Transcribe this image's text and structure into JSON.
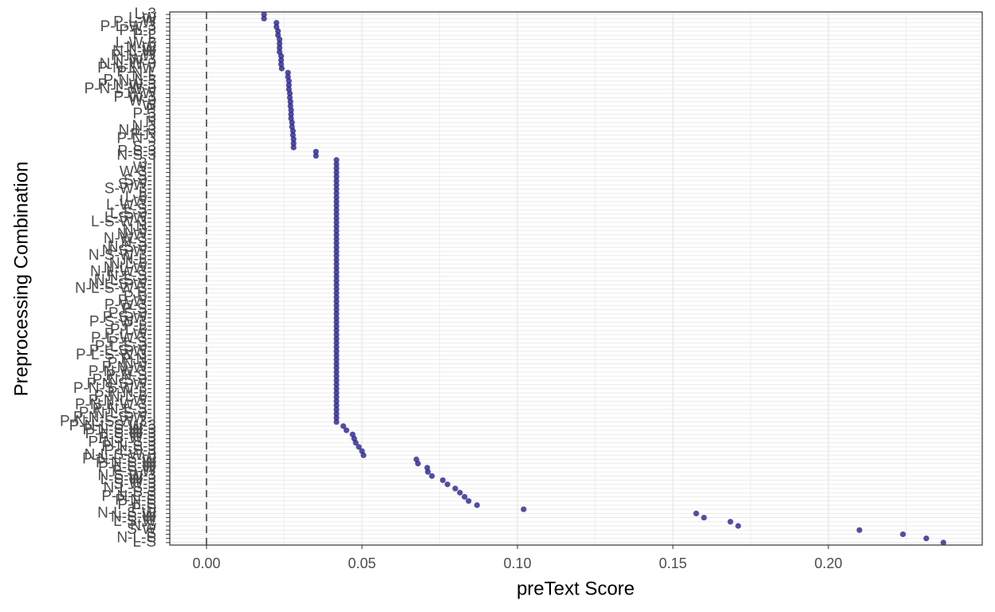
{
  "chart_data": {
    "type": "dot",
    "x_label": "preText Score",
    "y_label": "Preprocessing Combination",
    "color": "#27238c",
    "grid": true,
    "reference_line": 0,
    "xlim": [
      -0.0118,
      0.2495
    ],
    "xticks": [
      {
        "value": 0,
        "label": "0.00"
      },
      {
        "value": 0.05,
        "label": "0.05"
      },
      {
        "value": 0.1,
        "label": "0.10"
      },
      {
        "value": 0.15,
        "label": "0.15"
      },
      {
        "value": 0.2,
        "label": "0.20"
      }
    ],
    "categories": [
      "L-3",
      "L-W",
      "P-L-W",
      "P-L-W-3",
      "P-L-3",
      "P-L",
      "L",
      "L-W-3",
      "N-W",
      "N-L-W",
      "P-N-W",
      "N-W-3",
      "N-L-W-3",
      "P-N-L-W",
      "P-N-L",
      "N-L",
      "P-N-L-3",
      "P-N-W-3",
      "P-N-L-W-3",
      "P-W",
      "P-W-3",
      "W-3",
      "W",
      "P",
      "P-3",
      "3",
      "N",
      "N-3",
      "N-L-3",
      "P-N",
      "P-N-3",
      null,
      "S-3",
      "P-S-3",
      "N-S-3",
      "I",
      "3-I",
      "W-I",
      "W-3-I",
      "S-I",
      "S-3-I",
      "S-W-I",
      "S-W-3-I",
      "L-I",
      "L-3-I",
      "L-W-I",
      "L-W-3-I",
      "L-S-I",
      "L-S-3-I",
      "L-S-W-I",
      "L-S-W-3-I",
      "N-I",
      "N-3-I",
      "N-W-I",
      "N-W-3-I",
      "N-S-I",
      "N-S-3-I",
      "N-S-W-I",
      "N-S-W-3-I",
      "N-L-I",
      "N-L-3-I",
      "N-L-W-I",
      "N-L-W-3-I",
      "N-L-S-I",
      "N-L-S-3-I",
      "N-L-S-W-I",
      "N-L-S-W-3-I",
      "P-I",
      "P-3-I",
      "P-W-I",
      "P-W-3-I",
      "P-S-I",
      "P-S-3-I",
      "P-S-W-I",
      "P-S-W-3-I",
      "P-L-I",
      "P-L-3-I",
      "P-L-W-I",
      "P-L-W-3-I",
      "P-L-S-I",
      "P-L-S-3-I",
      "P-L-S-W-I",
      "P-L-S-W-3-I",
      "P-N-I",
      "P-N-3-I",
      "P-N-W-I",
      "P-N-W-3-I",
      "P-N-S-I",
      "P-N-S-3-I",
      "P-N-S-W-I",
      "P-N-S-W-3-I",
      "P-N-L-I",
      "P-N-L-3-I",
      "P-N-L-W-I",
      "P-N-L-W-3-I",
      "P-N-L-S-I",
      "P-N-L-S-3-I",
      "P-N-L-S-W-I",
      "P-N-L-S-W-3-I",
      "P-N-L-S-W-3",
      "P-N-S-W-3",
      "P-L-S-W-3",
      "P-S-W-3",
      "P-N-L-S-3",
      "P-N-S-3",
      "P-L-S-3",
      "N-L-S-W-3",
      "P-N-L-S-W",
      "P-N-S-W",
      "P-L-S-W",
      "P-S-W",
      "N-S-W-3",
      "L-S-W-3",
      "S-W-3",
      "N-L-S-3",
      "L-S-3",
      "P-N-L-S",
      "P-N-S",
      "P-L-S",
      "P-S",
      "N-L-S-W",
      "N-S-W",
      "L-S-W",
      "N-S",
      "S-W",
      "S",
      "N-L-S",
      "L-S"
    ],
    "values": [
      0.0185,
      0.0185,
      0.0225,
      0.0225,
      0.023,
      0.023,
      0.0235,
      0.0235,
      0.0235,
      0.0235,
      0.024,
      0.024,
      0.024,
      0.0242,
      0.0262,
      0.0262,
      0.0265,
      0.0265,
      0.0265,
      0.0268,
      0.0268,
      0.027,
      0.027,
      0.0272,
      0.0272,
      0.0272,
      0.0275,
      0.0275,
      0.0278,
      0.0278,
      0.028,
      0.028,
      0.028,
      0.0352,
      0.0352,
      0.0418,
      0.0418,
      0.0418,
      0.0418,
      0.0418,
      0.0418,
      0.0418,
      0.0418,
      0.0418,
      0.0418,
      0.0418,
      0.0418,
      0.0418,
      0.0418,
      0.0418,
      0.0418,
      0.0418,
      0.0418,
      0.0418,
      0.0418,
      0.0418,
      0.0418,
      0.0418,
      0.0418,
      0.0418,
      0.0418,
      0.0418,
      0.0418,
      0.0418,
      0.0418,
      0.0418,
      0.0418,
      0.0418,
      0.0418,
      0.0418,
      0.0418,
      0.0418,
      0.0418,
      0.0418,
      0.0418,
      0.0418,
      0.0418,
      0.0418,
      0.0418,
      0.0418,
      0.0418,
      0.0418,
      0.0418,
      0.0418,
      0.0418,
      0.0418,
      0.0418,
      0.0418,
      0.0418,
      0.0418,
      0.0418,
      0.0418,
      0.0418,
      0.0418,
      0.0418,
      0.0418,
      0.0418,
      0.0418,
      0.0418,
      0.044,
      0.045,
      0.047,
      0.0475,
      0.048,
      0.049,
      0.05,
      0.0505,
      0.0675,
      0.068,
      0.071,
      0.0712,
      0.0725,
      0.076,
      0.0775,
      0.08,
      0.0815,
      0.083,
      0.0843,
      0.087,
      0.102,
      0.1575,
      0.16,
      0.1685,
      0.171,
      0.21,
      0.224,
      0.2315,
      0.237
    ]
  }
}
